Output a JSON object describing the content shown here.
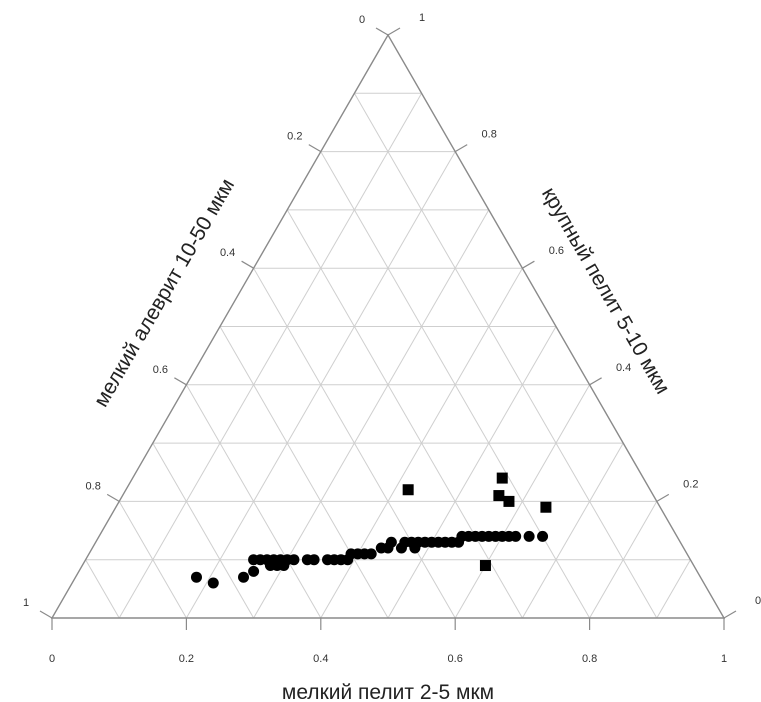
{
  "chart_data": {
    "type": "scatter",
    "subtype": "ternary",
    "axes": {
      "bottom": {
        "label": "мелкий пелит 2-5 мкм",
        "ticks": [
          "0",
          "0.2",
          "0.4",
          "0.6",
          "0.8",
          "1"
        ]
      },
      "left": {
        "label": "мелкий алеврит 10-50 мкм",
        "ticks": [
          "1",
          "0.8",
          "0.6",
          "0.4",
          "0.2",
          "0"
        ]
      },
      "right": {
        "label": "крупный пелит 5-10 мкм",
        "ticks": [
          "1",
          "0.8",
          "0.6",
          "0.4",
          "0.2",
          "0"
        ]
      }
    },
    "grid": true,
    "grid_step": 0.1,
    "colors": {
      "frame": "#8a8a8a",
      "grid": "#cfcfcf",
      "marker": "#000000"
    },
    "series": [
      {
        "marker": "circle",
        "points": [
          {
            "a": 0.75,
            "b": 0.18
          },
          {
            "a": 0.73,
            "b": 0.21
          },
          {
            "a": 0.68,
            "b": 0.25
          },
          {
            "a": 0.66,
            "b": 0.26
          },
          {
            "a": 0.65,
            "b": 0.25
          },
          {
            "a": 0.64,
            "b": 0.26
          },
          {
            "a": 0.63,
            "b": 0.27
          },
          {
            "a": 0.63,
            "b": 0.28
          },
          {
            "a": 0.62,
            "b": 0.29
          },
          {
            "a": 0.62,
            "b": 0.28
          },
          {
            "a": 0.61,
            "b": 0.29
          },
          {
            "a": 0.61,
            "b": 0.3
          },
          {
            "a": 0.6,
            "b": 0.3
          },
          {
            "a": 0.59,
            "b": 0.31
          },
          {
            "a": 0.57,
            "b": 0.33
          },
          {
            "a": 0.56,
            "b": 0.34
          },
          {
            "a": 0.54,
            "b": 0.36
          },
          {
            "a": 0.53,
            "b": 0.37
          },
          {
            "a": 0.52,
            "b": 0.38
          },
          {
            "a": 0.51,
            "b": 0.39
          },
          {
            "a": 0.5,
            "b": 0.39
          },
          {
            "a": 0.49,
            "b": 0.4
          },
          {
            "a": 0.48,
            "b": 0.41
          },
          {
            "a": 0.47,
            "b": 0.42
          },
          {
            "a": 0.45,
            "b": 0.43
          },
          {
            "a": 0.44,
            "b": 0.44
          },
          {
            "a": 0.43,
            "b": 0.44
          },
          {
            "a": 0.42,
            "b": 0.46
          },
          {
            "a": 0.41,
            "b": 0.46
          },
          {
            "a": 0.4,
            "b": 0.47
          },
          {
            "a": 0.4,
            "b": 0.48
          },
          {
            "a": 0.39,
            "b": 0.48
          },
          {
            "a": 0.38,
            "b": 0.49
          },
          {
            "a": 0.37,
            "b": 0.5
          },
          {
            "a": 0.36,
            "b": 0.51
          },
          {
            "a": 0.35,
            "b": 0.52
          },
          {
            "a": 0.34,
            "b": 0.53
          },
          {
            "a": 0.33,
            "b": 0.54
          },
          {
            "a": 0.32,
            "b": 0.54
          },
          {
            "a": 0.31,
            "b": 0.55
          },
          {
            "a": 0.3,
            "b": 0.56
          },
          {
            "a": 0.29,
            "b": 0.57
          },
          {
            "a": 0.28,
            "b": 0.58
          },
          {
            "a": 0.27,
            "b": 0.59
          },
          {
            "a": 0.26,
            "b": 0.6
          },
          {
            "a": 0.25,
            "b": 0.61
          },
          {
            "a": 0.24,
            "b": 0.62
          },
          {
            "a": 0.22,
            "b": 0.64
          },
          {
            "a": 0.2,
            "b": 0.66
          }
        ]
      },
      {
        "marker": "square",
        "points": [
          {
            "a": 0.36,
            "b": 0.42
          },
          {
            "a": 0.21,
            "b": 0.55
          },
          {
            "a": 0.23,
            "b": 0.56
          },
          {
            "a": 0.22,
            "b": 0.58
          },
          {
            "a": 0.17,
            "b": 0.64
          },
          {
            "a": 0.31,
            "b": 0.6
          }
        ]
      }
    ]
  }
}
